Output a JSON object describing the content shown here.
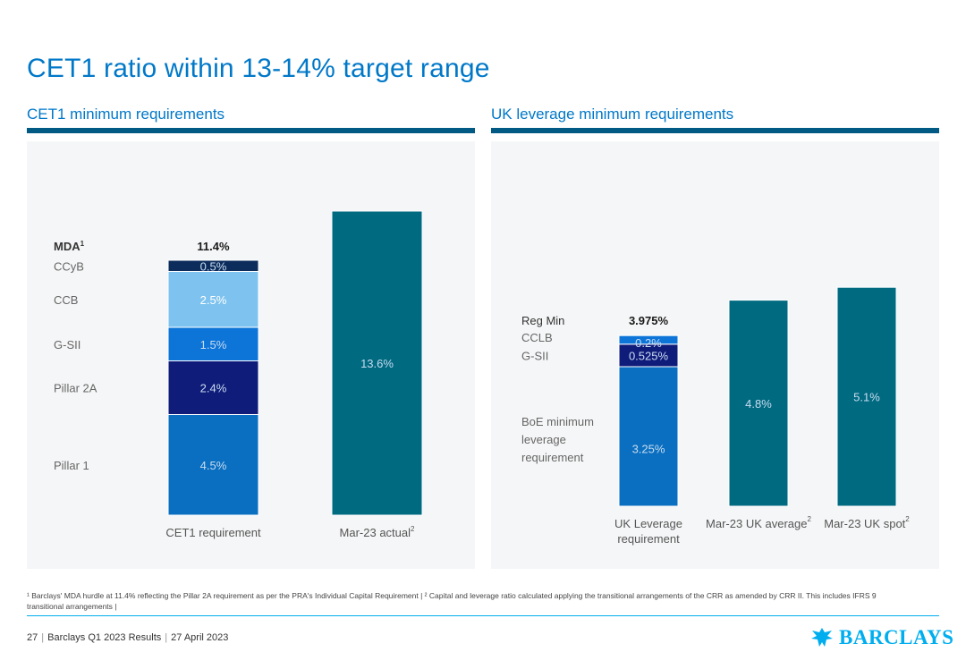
{
  "title": "CET1 ratio within 13-14% target range",
  "colors": {
    "brand_blue": "#0078c8",
    "teal": "#006a80",
    "navy": "#101c7a",
    "light_blue": "#7ec3ef",
    "mid_blue": "#0d74d8",
    "deep_blue": "#0a6fc1"
  },
  "chart_data": [
    {
      "type": "bar",
      "subtitle": "CET1 minimum requirements",
      "categories": [
        "CET1 requirement",
        "Mar-23 actual"
      ],
      "category_superscripts": [
        "",
        "2"
      ],
      "stacks": [
        {
          "category": "CET1 requirement",
          "segments": [
            {
              "label": "Pillar 1",
              "value": 4.5,
              "value_label": "4.5%",
              "color": "#0a6fc1"
            },
            {
              "label": "Pillar 2A",
              "value": 2.4,
              "value_label": "2.4%",
              "color": "#101c7a"
            },
            {
              "label": "G-SII",
              "value": 1.5,
              "value_label": "1.5%",
              "color": "#0d74d8"
            },
            {
              "label": "CCB",
              "value": 2.5,
              "value_label": "2.5%",
              "color": "#7ec3ef"
            },
            {
              "label": "CCyB",
              "value": 0.5,
              "value_label": "0.5%",
              "color": "#0c2c5c"
            }
          ],
          "total_label": "MDA",
          "total_superscript": "1",
          "total_value": "11.4%"
        },
        {
          "category": "Mar-23 actual",
          "segments": [
            {
              "label": "",
              "value": 13.6,
              "value_label": "13.6%",
              "color": "#006a80"
            }
          ]
        }
      ],
      "ylim": [
        0,
        15
      ]
    },
    {
      "type": "bar",
      "subtitle": "UK leverage minimum requirements",
      "categories": [
        "UK Leverage requirement",
        "Mar-23 UK average",
        "Mar-23 UK spot"
      ],
      "category_lines": [
        [
          "UK Leverage",
          "requirement"
        ],
        [
          "Mar-23 UK average"
        ],
        [
          "Mar-23 UK spot"
        ]
      ],
      "category_superscripts": [
        "",
        "2",
        "2"
      ],
      "stacks": [
        {
          "category": "UK Leverage requirement",
          "segments": [
            {
              "label": "BoE minimum leverage requirement",
              "label_lines": [
                "BoE minimum",
                "leverage",
                "requirement"
              ],
              "value": 3.25,
              "value_label": "3.25%",
              "color": "#0a6fc1"
            },
            {
              "label": "G-SII",
              "value": 0.525,
              "value_label": "0.525%",
              "color": "#101c7a"
            },
            {
              "label": "CCLB",
              "value": 0.2,
              "value_label": "0.2%",
              "color": "#0d74d8"
            }
          ],
          "total_label": "Reg Min",
          "total_value": "3.975%"
        },
        {
          "category": "Mar-23 UK average",
          "segments": [
            {
              "label": "",
              "value": 4.8,
              "value_label": "4.8%",
              "color": "#006a80"
            }
          ]
        },
        {
          "category": "Mar-23 UK spot",
          "segments": [
            {
              "label": "",
              "value": 5.1,
              "value_label": "5.1%",
              "color": "#006a80"
            }
          ]
        }
      ],
      "ylim": [
        0,
        6
      ]
    }
  ],
  "footnote": {
    "line1": "¹ Barclays' MDA hurdle at 11.4% reflecting the Pillar 2A requirement as per the PRA's Individual Capital Requirement | ² Capital and leverage ratio calculated applying the transitional arrangements of the CRR as amended by CRR II. This includes IFRS 9",
    "line2": "transitional arrangements |"
  },
  "footer": {
    "page_number": "27",
    "document": "Barclays Q1 2023 Results",
    "date": "27 April 2023"
  },
  "logo": {
    "text": "BARCLAYS",
    "icon": "eagle-icon"
  }
}
